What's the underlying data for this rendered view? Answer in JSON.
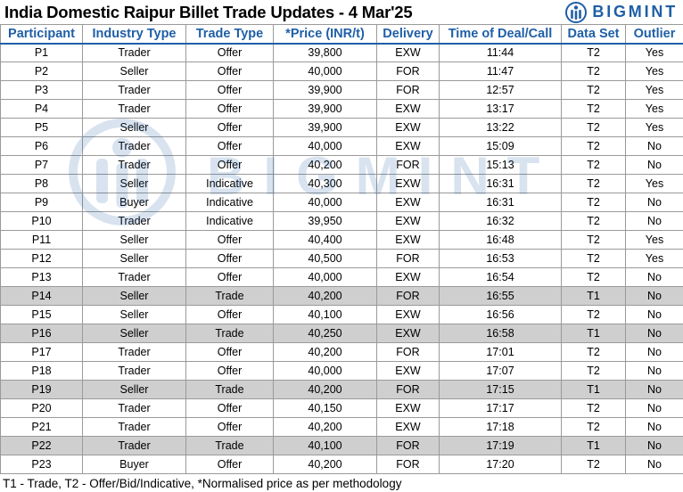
{
  "title": "India Domestic Raipur Billet Trade Updates - 4 Mar'25",
  "brand": {
    "name": "BIGMINT",
    "color": "#1f5fa6",
    "logo_icon": "bigmint-logo-icon"
  },
  "watermark": {
    "text": "BIGMINT"
  },
  "columns": [
    "Participant",
    "Industry Type",
    "Trade Type",
    "*Price (INR/t)",
    "Delivery",
    "Time of Deal/Call",
    "Data Set",
    "Outlier"
  ],
  "rows": [
    {
      "participant": "P1",
      "industry": "Trader",
      "trade": "Offer",
      "price": "39,800",
      "delivery": "EXW",
      "time": "11:44",
      "dataset": "T2",
      "outlier": "Yes"
    },
    {
      "participant": "P2",
      "industry": "Seller",
      "trade": "Offer",
      "price": "40,000",
      "delivery": "FOR",
      "time": "11:47",
      "dataset": "T2",
      "outlier": "Yes"
    },
    {
      "participant": "P3",
      "industry": "Trader",
      "trade": "Offer",
      "price": "39,900",
      "delivery": "FOR",
      "time": "12:57",
      "dataset": "T2",
      "outlier": "Yes"
    },
    {
      "participant": "P4",
      "industry": "Trader",
      "trade": "Offer",
      "price": "39,900",
      "delivery": "EXW",
      "time": "13:17",
      "dataset": "T2",
      "outlier": "Yes"
    },
    {
      "participant": "P5",
      "industry": "Seller",
      "trade": "Offer",
      "price": "39,900",
      "delivery": "EXW",
      "time": "13:22",
      "dataset": "T2",
      "outlier": "Yes"
    },
    {
      "participant": "P6",
      "industry": "Trader",
      "trade": "Offer",
      "price": "40,000",
      "delivery": "EXW",
      "time": "15:09",
      "dataset": "T2",
      "outlier": "No"
    },
    {
      "participant": "P7",
      "industry": "Trader",
      "trade": "Offer",
      "price": "40,200",
      "delivery": "FOR",
      "time": "15:13",
      "dataset": "T2",
      "outlier": "No"
    },
    {
      "participant": "P8",
      "industry": "Seller",
      "trade": "Indicative",
      "price": "40,300",
      "delivery": "EXW",
      "time": "16:31",
      "dataset": "T2",
      "outlier": "Yes"
    },
    {
      "participant": "P9",
      "industry": "Buyer",
      "trade": "Indicative",
      "price": "40,000",
      "delivery": "EXW",
      "time": "16:31",
      "dataset": "T2",
      "outlier": "No"
    },
    {
      "participant": "P10",
      "industry": "Trader",
      "trade": "Indicative",
      "price": "39,950",
      "delivery": "EXW",
      "time": "16:32",
      "dataset": "T2",
      "outlier": "No"
    },
    {
      "participant": "P11",
      "industry": "Seller",
      "trade": "Offer",
      "price": "40,400",
      "delivery": "EXW",
      "time": "16:48",
      "dataset": "T2",
      "outlier": "Yes"
    },
    {
      "participant": "P12",
      "industry": "Seller",
      "trade": "Offer",
      "price": "40,500",
      "delivery": "FOR",
      "time": "16:53",
      "dataset": "T2",
      "outlier": "Yes"
    },
    {
      "participant": "P13",
      "industry": "Trader",
      "trade": "Offer",
      "price": "40,000",
      "delivery": "EXW",
      "time": "16:54",
      "dataset": "T2",
      "outlier": "No"
    },
    {
      "participant": "P14",
      "industry": "Seller",
      "trade": "Trade",
      "price": "40,200",
      "delivery": "FOR",
      "time": "16:55",
      "dataset": "T1",
      "outlier": "No"
    },
    {
      "participant": "P15",
      "industry": "Seller",
      "trade": "Offer",
      "price": "40,100",
      "delivery": "EXW",
      "time": "16:56",
      "dataset": "T2",
      "outlier": "No"
    },
    {
      "participant": "P16",
      "industry": "Seller",
      "trade": "Trade",
      "price": "40,250",
      "delivery": "EXW",
      "time": "16:58",
      "dataset": "T1",
      "outlier": "No"
    },
    {
      "participant": "P17",
      "industry": "Trader",
      "trade": "Offer",
      "price": "40,200",
      "delivery": "FOR",
      "time": "17:01",
      "dataset": "T2",
      "outlier": "No"
    },
    {
      "participant": "P18",
      "industry": "Trader",
      "trade": "Offer",
      "price": "40,000",
      "delivery": "EXW",
      "time": "17:07",
      "dataset": "T2",
      "outlier": "No"
    },
    {
      "participant": "P19",
      "industry": "Seller",
      "trade": "Trade",
      "price": "40,200",
      "delivery": "FOR",
      "time": "17:15",
      "dataset": "T1",
      "outlier": "No"
    },
    {
      "participant": "P20",
      "industry": "Trader",
      "trade": "Offer",
      "price": "40,150",
      "delivery": "EXW",
      "time": "17:17",
      "dataset": "T2",
      "outlier": "No"
    },
    {
      "participant": "P21",
      "industry": "Trader",
      "trade": "Offer",
      "price": "40,200",
      "delivery": "EXW",
      "time": "17:18",
      "dataset": "T2",
      "outlier": "No"
    },
    {
      "participant": "P22",
      "industry": "Trader",
      "trade": "Trade",
      "price": "40,100",
      "delivery": "FOR",
      "time": "17:19",
      "dataset": "T1",
      "outlier": "No"
    },
    {
      "participant": "P23",
      "industry": "Buyer",
      "trade": "Offer",
      "price": "40,200",
      "delivery": "FOR",
      "time": "17:20",
      "dataset": "T2",
      "outlier": "No"
    }
  ],
  "highlight_color": "#d0cfcf",
  "footnote": "T1 - Trade, T2 - Offer/Bid/Indicative, *Normalised price as per methodology"
}
